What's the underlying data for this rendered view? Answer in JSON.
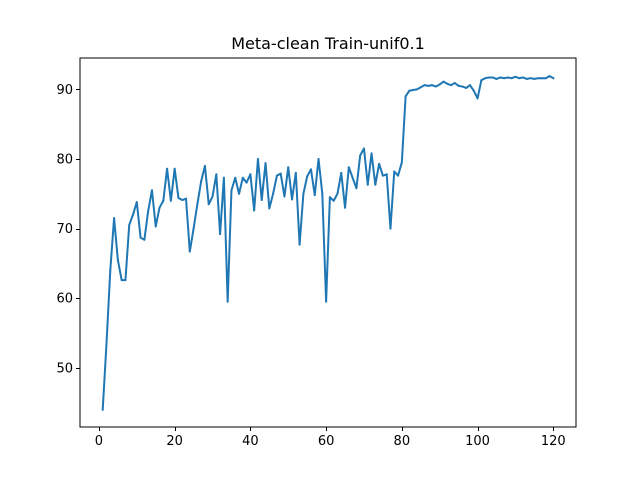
{
  "chart_data": {
    "type": "line",
    "title": "Meta-clean Train-unif0.1",
    "xlabel": "",
    "ylabel": "",
    "xlim": [
      -5.0,
      126.0
    ],
    "ylim": [
      41.5,
      94.5
    ],
    "xticks": [
      0,
      20,
      40,
      60,
      80,
      100,
      120
    ],
    "yticks": [
      50,
      60,
      70,
      80,
      90
    ],
    "grid": false,
    "legend": "none",
    "colors": {
      "line": "#1f77b4"
    },
    "series": [
      {
        "x": [
          1,
          2,
          3,
          4,
          5,
          6,
          7,
          8,
          9,
          10,
          11,
          12,
          13,
          14,
          15,
          16,
          17,
          18,
          19,
          20,
          21,
          22,
          23,
          24,
          25,
          26,
          27,
          28,
          29,
          30,
          31,
          32,
          33,
          34,
          35,
          36,
          37,
          38,
          39,
          40,
          41,
          42,
          43,
          44,
          45,
          46,
          47,
          48,
          49,
          50,
          51,
          52,
          53,
          54,
          55,
          56,
          57,
          58,
          59,
          60,
          61,
          62,
          63,
          64,
          65,
          66,
          67,
          68,
          69,
          70,
          71,
          72,
          73,
          74,
          75,
          76,
          77,
          78,
          79,
          80,
          81,
          82,
          83,
          84,
          85,
          86,
          87,
          88,
          89,
          90,
          91,
          92,
          93,
          94,
          95,
          96,
          97,
          98,
          99,
          100,
          101,
          102,
          103,
          104,
          105,
          106,
          107,
          108,
          109,
          110,
          111,
          112,
          113,
          114,
          115,
          116,
          117,
          118,
          119,
          120
        ],
        "values": [
          44.0,
          53.5,
          64.0,
          71.5,
          65.5,
          62.6,
          62.6,
          70.5,
          72.0,
          73.8,
          68.7,
          68.4,
          72.5,
          75.5,
          70.3,
          73.0,
          74.0,
          78.6,
          74.0,
          78.6,
          74.4,
          74.1,
          74.3,
          66.7,
          70.0,
          73.5,
          76.8,
          79.0,
          73.5,
          74.6,
          77.8,
          69.2,
          77.3,
          59.5,
          75.5,
          77.3,
          75.0,
          77.3,
          76.6,
          77.8,
          72.6,
          80.0,
          74.1,
          79.4,
          72.9,
          75.0,
          77.6,
          77.9,
          74.6,
          78.8,
          74.2,
          78.0,
          67.7,
          75.0,
          77.5,
          78.5,
          74.8,
          80.0,
          75.0,
          59.5,
          74.5,
          74.0,
          75.0,
          78.0,
          73.0,
          78.8,
          77.3,
          75.8,
          80.5,
          81.5,
          76.3,
          80.8,
          76.3,
          79.3,
          77.6,
          77.8,
          70.0,
          78.2,
          77.6,
          79.5,
          89.0,
          89.8,
          89.9,
          90.0,
          90.3,
          90.6,
          90.5,
          90.6,
          90.4,
          90.7,
          91.1,
          90.8,
          90.6,
          90.9,
          90.5,
          90.4,
          90.2,
          90.6,
          89.8,
          88.7,
          91.3,
          91.6,
          91.7,
          91.7,
          91.5,
          91.7,
          91.6,
          91.7,
          91.6,
          91.8,
          91.6,
          91.7,
          91.5,
          91.6,
          91.5,
          91.6,
          91.6,
          91.6,
          91.9,
          91.6
        ]
      }
    ]
  }
}
